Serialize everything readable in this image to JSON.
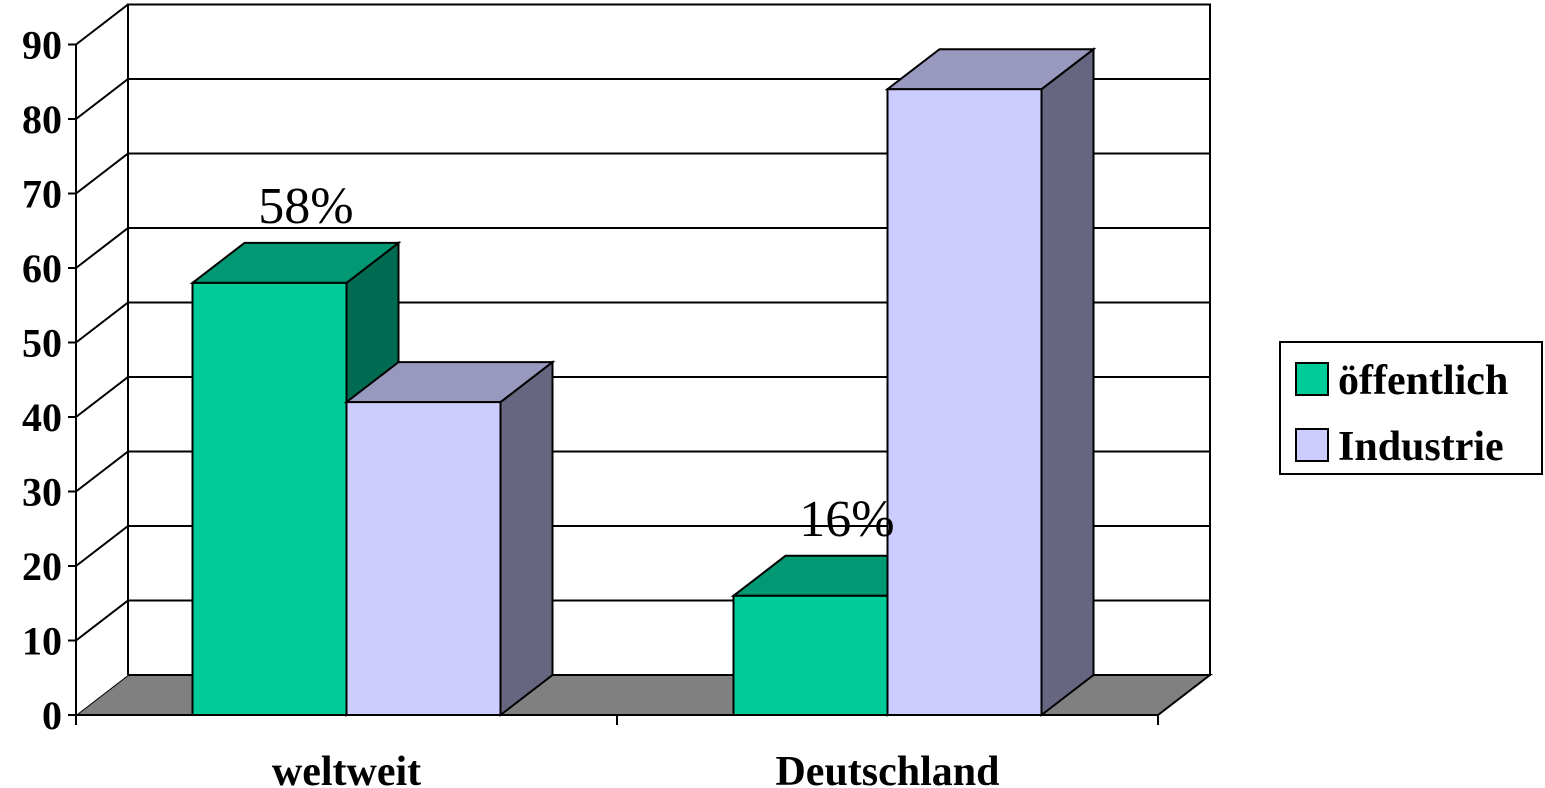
{
  "chart_data": {
    "type": "bar",
    "categories": [
      "weltweit",
      "Deutschland"
    ],
    "series": [
      {
        "name": "öffentlich",
        "values": [
          58,
          16
        ],
        "color": "#00CC99",
        "top_color": "#009973",
        "side_color": "#006B50"
      },
      {
        "name": "Industrie",
        "values": [
          42,
          84
        ],
        "color": "#CCCCFF",
        "top_color": "#9999C0",
        "side_color": "#666680"
      }
    ],
    "data_labels": [
      {
        "text": "58%",
        "category": "weltweit",
        "series": "öffentlich"
      },
      {
        "text": "16%",
        "category": "Deutschland",
        "series": "öffentlich"
      }
    ],
    "ylim": [
      0,
      90
    ],
    "yticks": [
      "0",
      "10",
      "20",
      "30",
      "40",
      "50",
      "60",
      "70",
      "80",
      "90"
    ],
    "grid": true,
    "legend_position": "right",
    "floor_color": "#808080",
    "style": "3d-column"
  }
}
